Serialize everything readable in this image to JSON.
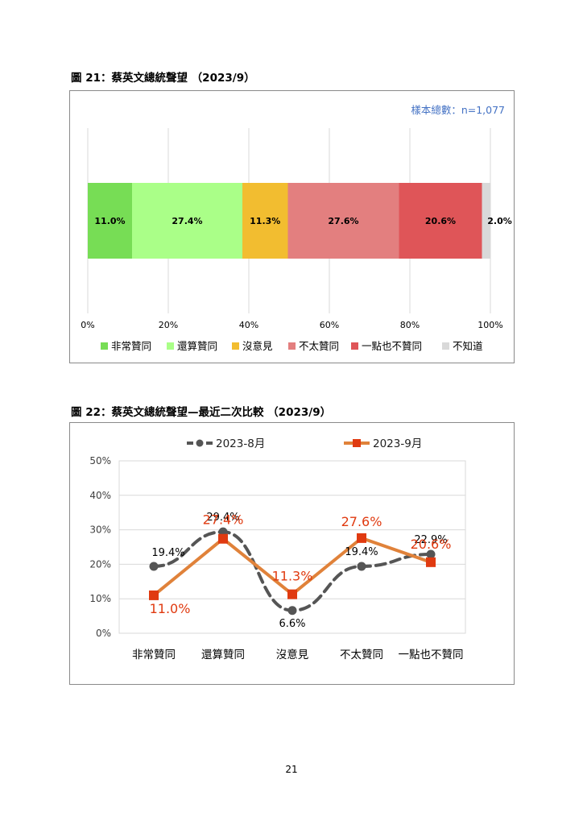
{
  "figure1": {
    "title": "圖 21：蔡英文總統聲望 （2023/9）",
    "sample_note": "樣本總數：n=1,077"
  },
  "figure2": {
    "title": "圖 22：蔡英文總統聲望—最近二次比較 （2023/9）"
  },
  "page_number": "21",
  "chart_data": [
    {
      "type": "bar",
      "orientation": "horizontal",
      "stacked": true,
      "categories": [
        "非常贊同",
        "還算贊同",
        "沒意見",
        "不太贊同",
        "一點也不贊同",
        "不知道"
      ],
      "values": [
        11.0,
        27.4,
        11.3,
        27.6,
        20.6,
        2.0
      ],
      "data_labels": [
        "11.0%",
        "27.4%",
        "11.3%",
        "27.6%",
        "20.6%",
        "2.0%"
      ],
      "colors": [
        "#77dd55",
        "#aaff88",
        "#f2bd30",
        "#e37f7f",
        "#df5558",
        "#d9d9d9"
      ],
      "xlim": [
        0,
        100
      ],
      "x_ticks": [
        "0%",
        "20%",
        "40%",
        "60%",
        "80%",
        "100%"
      ],
      "legend_position": "bottom",
      "grid": "vertical"
    },
    {
      "type": "line",
      "categories": [
        "非常贊同",
        "還算贊同",
        "沒意見",
        "不太贊同",
        "一點也不贊同"
      ],
      "series": [
        {
          "name": "2023-8月",
          "values": [
            19.4,
            29.4,
            6.6,
            19.4,
            22.9
          ],
          "labels": [
            "19.4%",
            "29.4%",
            "6.6%",
            "19.4%",
            "22.9%"
          ],
          "color": "#555555",
          "style": "dashed",
          "marker": "circle"
        },
        {
          "name": "2023-9月",
          "values": [
            11.0,
            27.4,
            11.3,
            27.6,
            20.6
          ],
          "labels": [
            "11.0%",
            "27.4%",
            "11.3%",
            "27.6%",
            "20.6%"
          ],
          "color": "#e0823a",
          "marker_color": "#e03a10",
          "style": "solid",
          "marker": "square"
        }
      ],
      "ylim": [
        0,
        50
      ],
      "y_ticks": [
        "0%",
        "10%",
        "20%",
        "30%",
        "40%",
        "50%"
      ],
      "legend_position": "top",
      "grid": "horizontal"
    }
  ]
}
